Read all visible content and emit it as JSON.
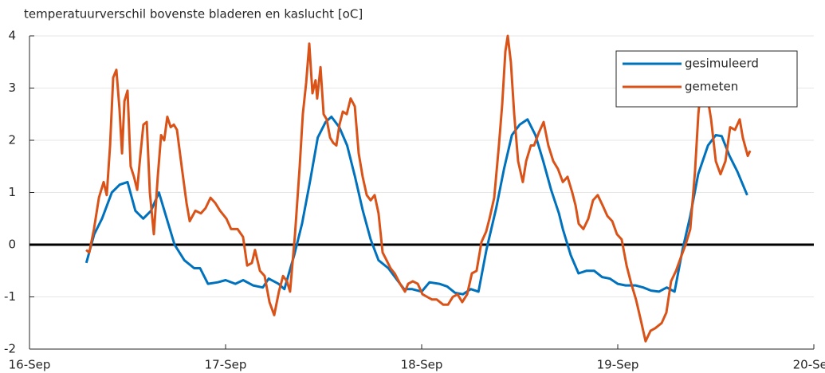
{
  "chart_data": {
    "type": "line",
    "title": "temperatuurverschil bovenste bladeren en kaslucht [oC]",
    "xlim": [
      16,
      20
    ],
    "xticks": [
      {
        "value": 16,
        "label": "16-Sep"
      },
      {
        "value": 17,
        "label": "17-Sep"
      },
      {
        "value": 18,
        "label": "18-Sep"
      },
      {
        "value": 19,
        "label": "19-Sep"
      },
      {
        "value": 20,
        "label": "20-Sep"
      }
    ],
    "ylim": [
      -2,
      4
    ],
    "yticks": [
      -2,
      -1,
      0,
      1,
      2,
      3,
      4
    ],
    "grid": true,
    "legend": "upper right",
    "series": [
      {
        "name": "gesimuleerd",
        "color": "#0072bd",
        "x": [
          16.29,
          16.33,
          16.37,
          16.42,
          16.46,
          16.5,
          16.54,
          16.58,
          16.62,
          16.66,
          16.7,
          16.74,
          16.79,
          16.84,
          16.87,
          16.91,
          16.96,
          17.0,
          17.05,
          17.09,
          17.14,
          17.19,
          17.22,
          17.27,
          17.3,
          17.35,
          17.39,
          17.43,
          17.47,
          17.51,
          17.54,
          17.58,
          17.62,
          17.66,
          17.7,
          17.74,
          17.78,
          17.83,
          17.87,
          17.91,
          17.95,
          18.0,
          18.04,
          18.09,
          18.13,
          18.17,
          18.21,
          18.25,
          18.29,
          18.33,
          18.38,
          18.42,
          18.46,
          18.5,
          18.54,
          18.58,
          18.62,
          18.66,
          18.7,
          18.72,
          18.76,
          18.8,
          18.84,
          18.88,
          18.92,
          18.96,
          19.0,
          19.04,
          19.09,
          19.13,
          19.17,
          19.21,
          19.25,
          19.29,
          19.33,
          19.37,
          19.41,
          19.46,
          19.5,
          19.53,
          19.57,
          19.61,
          19.66
        ],
        "values": [
          -0.35,
          0.2,
          0.5,
          1.0,
          1.15,
          1.2,
          0.65,
          0.5,
          0.65,
          1.0,
          0.5,
          0.0,
          -0.3,
          -0.45,
          -0.45,
          -0.75,
          -0.72,
          -0.68,
          -0.75,
          -0.68,
          -0.78,
          -0.82,
          -0.65,
          -0.75,
          -0.85,
          -0.2,
          0.4,
          1.2,
          2.05,
          2.35,
          2.45,
          2.25,
          1.9,
          1.3,
          0.65,
          0.1,
          -0.3,
          -0.45,
          -0.65,
          -0.85,
          -0.85,
          -0.9,
          -0.72,
          -0.75,
          -0.8,
          -0.92,
          -0.95,
          -0.85,
          -0.9,
          -0.1,
          0.7,
          1.45,
          2.1,
          2.3,
          2.4,
          2.1,
          1.6,
          1.05,
          0.6,
          0.3,
          -0.2,
          -0.55,
          -0.5,
          -0.5,
          -0.62,
          -0.65,
          -0.75,
          -0.78,
          -0.78,
          -0.82,
          -0.88,
          -0.9,
          -0.82,
          -0.9,
          -0.1,
          0.55,
          1.35,
          1.9,
          2.1,
          2.08,
          1.7,
          1.4,
          0.95
        ]
      },
      {
        "name": "gemeten",
        "color": "#d95319",
        "x": [
          16.289,
          16.305,
          16.329,
          16.354,
          16.378,
          16.394,
          16.411,
          16.427,
          16.443,
          16.459,
          16.472,
          16.484,
          16.5,
          16.516,
          16.533,
          16.549,
          16.565,
          16.581,
          16.598,
          16.614,
          16.634,
          16.654,
          16.671,
          16.687,
          16.703,
          16.72,
          16.736,
          16.752,
          16.776,
          16.801,
          16.817,
          16.846,
          16.874,
          16.898,
          16.923,
          16.947,
          16.972,
          17.004,
          17.028,
          17.061,
          17.089,
          17.11,
          17.134,
          17.15,
          17.175,
          17.199,
          17.224,
          17.248,
          17.272,
          17.293,
          17.313,
          17.329,
          17.354,
          17.378,
          17.394,
          17.411,
          17.427,
          17.443,
          17.459,
          17.467,
          17.484,
          17.5,
          17.516,
          17.533,
          17.549,
          17.565,
          17.581,
          17.598,
          17.618,
          17.638,
          17.659,
          17.679,
          17.699,
          17.72,
          17.74,
          17.76,
          17.78,
          17.801,
          17.821,
          17.841,
          17.862,
          17.89,
          17.915,
          17.931,
          17.955,
          17.98,
          18.004,
          18.028,
          18.053,
          18.077,
          18.11,
          18.134,
          18.159,
          18.183,
          18.207,
          18.232,
          18.256,
          18.28,
          18.305,
          18.329,
          18.346,
          18.37,
          18.394,
          18.411,
          18.427,
          18.439,
          18.455,
          18.472,
          18.492,
          18.516,
          18.533,
          18.557,
          18.573,
          18.598,
          18.622,
          18.646,
          18.671,
          18.695,
          18.72,
          18.744,
          18.768,
          18.785,
          18.801,
          18.825,
          18.85,
          18.874,
          18.898,
          18.923,
          18.947,
          18.972,
          18.996,
          19.02,
          19.045,
          19.069,
          19.093,
          19.118,
          19.142,
          19.167,
          19.191,
          19.224,
          19.248,
          19.272,
          19.297,
          19.321,
          19.346,
          19.37,
          19.394,
          19.411,
          19.427,
          19.443,
          19.459,
          19.476,
          19.5,
          19.524,
          19.549,
          19.573,
          19.598,
          19.622,
          19.638,
          19.663,
          19.675
        ],
        "values": [
          -0.1,
          -0.15,
          0.3,
          0.9,
          1.2,
          0.95,
          1.9,
          3.2,
          3.35,
          2.6,
          1.75,
          2.75,
          2.95,
          1.5,
          1.3,
          1.05,
          1.7,
          2.3,
          2.35,
          1.0,
          0.2,
          1.3,
          2.1,
          2.0,
          2.45,
          2.25,
          2.3,
          2.2,
          1.5,
          0.8,
          0.45,
          0.65,
          0.6,
          0.7,
          0.9,
          0.8,
          0.65,
          0.5,
          0.3,
          0.3,
          0.15,
          -0.4,
          -0.35,
          -0.1,
          -0.5,
          -0.6,
          -1.1,
          -1.35,
          -0.9,
          -0.6,
          -0.7,
          -0.9,
          0.2,
          1.5,
          2.5,
          3.1,
          3.85,
          2.9,
          3.15,
          2.8,
          3.4,
          2.5,
          2.4,
          2.05,
          1.95,
          1.9,
          2.3,
          2.55,
          2.5,
          2.8,
          2.65,
          1.75,
          1.3,
          0.95,
          0.85,
          0.95,
          0.6,
          -0.15,
          -0.3,
          -0.45,
          -0.55,
          -0.75,
          -0.9,
          -0.75,
          -0.7,
          -0.75,
          -0.95,
          -1.0,
          -1.05,
          -1.05,
          -1.15,
          -1.15,
          -1.0,
          -0.95,
          -1.1,
          -0.95,
          -0.55,
          -0.5,
          0.05,
          0.25,
          0.5,
          0.9,
          1.9,
          2.7,
          3.7,
          4.0,
          3.5,
          2.5,
          1.6,
          1.2,
          1.6,
          1.9,
          1.9,
          2.15,
          2.35,
          1.9,
          1.6,
          1.45,
          1.2,
          1.3,
          1.0,
          0.75,
          0.4,
          0.3,
          0.5,
          0.85,
          0.95,
          0.75,
          0.55,
          0.45,
          0.2,
          0.1,
          -0.4,
          -0.75,
          -1.05,
          -1.45,
          -1.85,
          -1.65,
          -1.6,
          -1.5,
          -1.3,
          -0.7,
          -0.5,
          -0.25,
          0.0,
          0.3,
          1.4,
          2.5,
          3.1,
          3.6,
          2.8,
          2.4,
          1.6,
          1.35,
          1.6,
          2.25,
          2.2,
          2.4,
          2.05,
          1.7,
          1.8
        ]
      }
    ]
  }
}
